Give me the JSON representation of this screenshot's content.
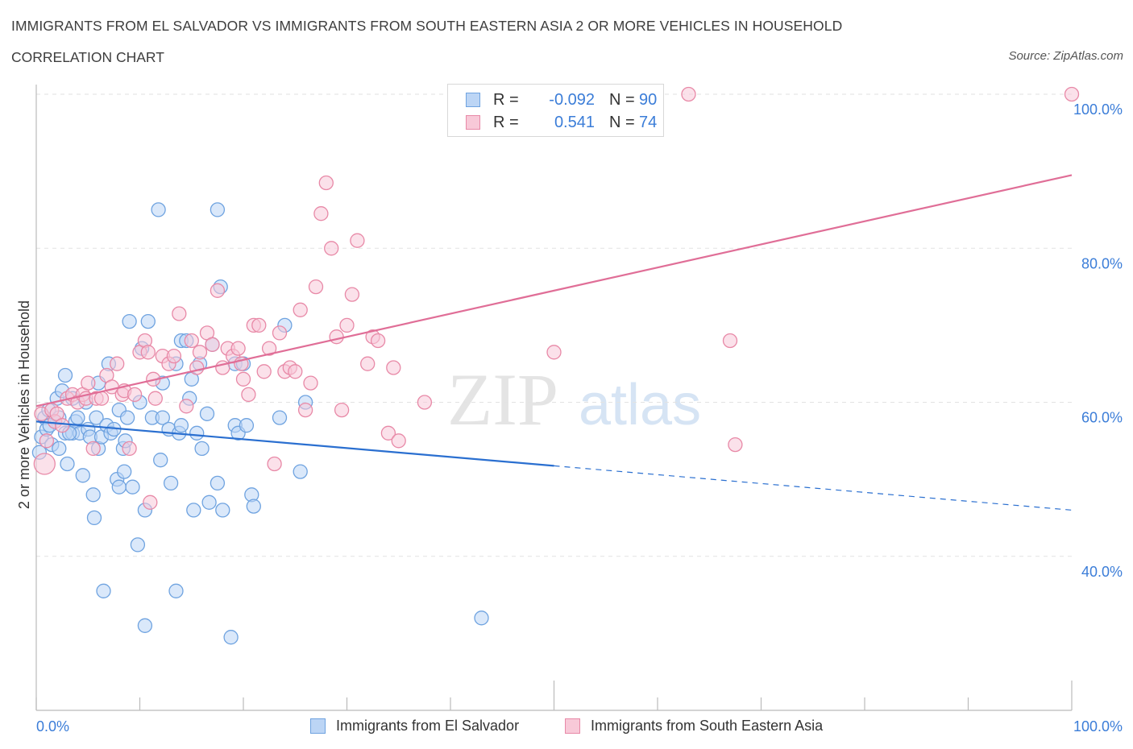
{
  "header": {
    "title": "IMMIGRANTS FROM EL SALVADOR VS IMMIGRANTS FROM SOUTH EASTERN ASIA 2 OR MORE VEHICLES IN HOUSEHOLD",
    "subtitle": "CORRELATION CHART",
    "source": "Source: ZipAtlas.com"
  },
  "watermark": {
    "zip": "ZIP",
    "atlas": "atlas"
  },
  "legend": {
    "rows": [
      {
        "r_label": "R =",
        "r_value": "-0.092",
        "n_label": "N =",
        "n_value": "90",
        "color": "#6fa3e0",
        "fill": "#bcd5f5"
      },
      {
        "r_label": "R =",
        "r_value": "0.541",
        "n_label": "N =",
        "n_value": "74",
        "color": "#e889a7",
        "fill": "#f8c9d8"
      }
    ]
  },
  "chart_data": {
    "type": "scatter",
    "title": "IMMIGRANTS FROM EL SALVADOR VS IMMIGRANTS FROM SOUTH EASTERN ASIA 2 OR MORE VEHICLES IN HOUSEHOLD",
    "subtitle": "CORRELATION CHART",
    "xlabel": "",
    "ylabel": "2 or more Vehicles in Household",
    "xlim": [
      0,
      100
    ],
    "ylim": [
      20,
      100
    ],
    "x_tick_labels": [
      "0.0%",
      "100.0%"
    ],
    "y_tick_values": [
      40,
      60,
      80,
      100
    ],
    "y_tick_labels": [
      "40.0%",
      "60.0%",
      "80.0%",
      "100.0%"
    ],
    "grid": true,
    "grid_style": "dashed horizontal",
    "legend_position": "top-center",
    "series": [
      {
        "name": "Immigrants from El Salvador",
        "color": "#6fa3e0",
        "fill": "#bcd5f5",
        "trend_color": "#2a6fd0",
        "R": -0.092,
        "N": 90,
        "trend": {
          "x0": 0,
          "y0": 57.5,
          "x_solid_end": 50,
          "x1": 100,
          "y1": 46
        },
        "points": [
          [
            0.5,
            55.5
          ],
          [
            0.8,
            58.0
          ],
          [
            1.0,
            56.5
          ],
          [
            1.2,
            59.0
          ],
          [
            1.5,
            54.5
          ],
          [
            1.8,
            57.5
          ],
          [
            2.0,
            60.5
          ],
          [
            2.2,
            58.0
          ],
          [
            2.5,
            61.5
          ],
          [
            2.8,
            63.5
          ],
          [
            2.8,
            56.0
          ],
          [
            3.0,
            52.0
          ],
          [
            3.5,
            60.5
          ],
          [
            3.5,
            56.0
          ],
          [
            3.8,
            57.5
          ],
          [
            4.0,
            58.0
          ],
          [
            4.2,
            56.0
          ],
          [
            4.5,
            50.5
          ],
          [
            4.8,
            60.0
          ],
          [
            5.0,
            56.5
          ],
          [
            5.2,
            55.5
          ],
          [
            5.5,
            48.0
          ],
          [
            5.6,
            45.0
          ],
          [
            5.8,
            58.0
          ],
          [
            6.0,
            54.0
          ],
          [
            6.0,
            62.5
          ],
          [
            6.3,
            55.5
          ],
          [
            6.5,
            35.5
          ],
          [
            6.8,
            57.0
          ],
          [
            7.0,
            65.0
          ],
          [
            7.2,
            56.0
          ],
          [
            7.5,
            56.5
          ],
          [
            7.8,
            50.0
          ],
          [
            8.0,
            49.0
          ],
          [
            8.0,
            59.0
          ],
          [
            8.4,
            54.0
          ],
          [
            8.5,
            51.0
          ],
          [
            8.6,
            55.0
          ],
          [
            8.8,
            58.0
          ],
          [
            9.0,
            70.5
          ],
          [
            9.3,
            49.0
          ],
          [
            9.8,
            41.5
          ],
          [
            10.0,
            60.0
          ],
          [
            10.2,
            67.0
          ],
          [
            10.5,
            46.0
          ],
          [
            10.5,
            31.0
          ],
          [
            10.8,
            70.5
          ],
          [
            11.2,
            58.0
          ],
          [
            11.8,
            85.0
          ],
          [
            12.0,
            52.5
          ],
          [
            12.2,
            62.5
          ],
          [
            12.2,
            58.0
          ],
          [
            12.8,
            56.5
          ],
          [
            13.0,
            49.5
          ],
          [
            13.5,
            65.0
          ],
          [
            13.5,
            35.5
          ],
          [
            13.8,
            56.0
          ],
          [
            14.0,
            68.0
          ],
          [
            14.5,
            68.0
          ],
          [
            14.8,
            60.5
          ],
          [
            15.0,
            63.0
          ],
          [
            15.2,
            46.0
          ],
          [
            15.5,
            56.0
          ],
          [
            15.8,
            65.0
          ],
          [
            16.0,
            54.0
          ],
          [
            16.5,
            58.5
          ],
          [
            16.7,
            47.0
          ],
          [
            17.0,
            67.5
          ],
          [
            17.5,
            49.5
          ],
          [
            17.5,
            85.0
          ],
          [
            17.8,
            75.0
          ],
          [
            18.0,
            46.0
          ],
          [
            18.8,
            29.5
          ],
          [
            19.2,
            65.0
          ],
          [
            19.2,
            57.0
          ],
          [
            19.5,
            56.0
          ],
          [
            20.0,
            65.0
          ],
          [
            20.3,
            57.0
          ],
          [
            20.8,
            48.0
          ],
          [
            21.0,
            46.5
          ],
          [
            23.5,
            58.0
          ],
          [
            24.0,
            70.0
          ],
          [
            25.5,
            51.0
          ],
          [
            26.0,
            60.0
          ],
          [
            43.0,
            32.0
          ],
          [
            0.3,
            53.5
          ],
          [
            1.3,
            57.0
          ],
          [
            3.2,
            56.0
          ],
          [
            2.2,
            54.0
          ],
          [
            14.0,
            57.0
          ]
        ]
      },
      {
        "name": "Immigrants from South Eastern Asia",
        "color": "#e889a7",
        "fill": "#f8c9d8",
        "trend_color": "#e06e97",
        "R": 0.541,
        "N": 74,
        "trend": {
          "x0": 0,
          "y0": 59.5,
          "x1": 100,
          "y1": 89.5
        },
        "points": [
          [
            0.5,
            58.5
          ],
          [
            0.8,
            52.0
          ],
          [
            1.0,
            55.0
          ],
          [
            1.5,
            59.0
          ],
          [
            1.8,
            57.5
          ],
          [
            2.0,
            58.5
          ],
          [
            2.5,
            57.0
          ],
          [
            3.0,
            60.5
          ],
          [
            3.5,
            61.0
          ],
          [
            4.0,
            60.0
          ],
          [
            4.5,
            61.0
          ],
          [
            4.8,
            60.5
          ],
          [
            5.0,
            62.5
          ],
          [
            5.5,
            54.0
          ],
          [
            5.8,
            60.5
          ],
          [
            6.3,
            60.5
          ],
          [
            6.8,
            63.5
          ],
          [
            7.3,
            62.0
          ],
          [
            7.8,
            65.0
          ],
          [
            8.3,
            61.0
          ],
          [
            8.5,
            61.5
          ],
          [
            9.0,
            54.0
          ],
          [
            9.5,
            61.0
          ],
          [
            10.0,
            66.5
          ],
          [
            10.5,
            68.0
          ],
          [
            10.8,
            66.5
          ],
          [
            11.0,
            47.0
          ],
          [
            11.3,
            63.0
          ],
          [
            11.5,
            60.5
          ],
          [
            12.2,
            66.0
          ],
          [
            12.8,
            65.0
          ],
          [
            13.3,
            66.0
          ],
          [
            13.8,
            71.5
          ],
          [
            14.5,
            59.5
          ],
          [
            15.0,
            68.0
          ],
          [
            15.5,
            64.5
          ],
          [
            15.8,
            66.5
          ],
          [
            16.5,
            69.0
          ],
          [
            17.0,
            67.5
          ],
          [
            17.5,
            74.5
          ],
          [
            18.0,
            64.5
          ],
          [
            18.5,
            67.0
          ],
          [
            19.0,
            66.0
          ],
          [
            19.5,
            67.0
          ],
          [
            19.8,
            65.0
          ],
          [
            20.0,
            63.0
          ],
          [
            20.5,
            61.0
          ],
          [
            21.0,
            70.0
          ],
          [
            21.5,
            70.0
          ],
          [
            22.0,
            64.0
          ],
          [
            22.5,
            67.0
          ],
          [
            23.0,
            52.0
          ],
          [
            23.5,
            69.0
          ],
          [
            24.0,
            64.0
          ],
          [
            24.5,
            64.5
          ],
          [
            25.0,
            64.0
          ],
          [
            25.5,
            72.0
          ],
          [
            26.0,
            59.0
          ],
          [
            26.5,
            62.5
          ],
          [
            27.0,
            75.0
          ],
          [
            27.5,
            84.5
          ],
          [
            28.0,
            88.5
          ],
          [
            28.5,
            80.0
          ],
          [
            29.0,
            68.5
          ],
          [
            29.5,
            59.0
          ],
          [
            30.0,
            70.0
          ],
          [
            30.5,
            74.0
          ],
          [
            31.0,
            81.0
          ],
          [
            32.0,
            65.0
          ],
          [
            32.5,
            68.5
          ],
          [
            33.0,
            68.0
          ],
          [
            34.0,
            56.0
          ],
          [
            34.5,
            64.5
          ],
          [
            35.0,
            55.0
          ]
        ],
        "extra_points": [
          [
            37.5,
            60.0
          ],
          [
            50.0,
            66.5
          ],
          [
            63.0,
            100.0
          ],
          [
            67.0,
            68.0
          ],
          [
            67.5,
            54.5
          ],
          [
            100.0,
            100.0
          ]
        ]
      }
    ]
  },
  "bottom_legend": {
    "items": [
      {
        "label": "Immigrants from El Salvador",
        "color": "#6fa3e0",
        "fill": "#bcd5f5"
      },
      {
        "label": "Immigrants from South Eastern Asia",
        "color": "#e889a7",
        "fill": "#f8c9d8"
      }
    ]
  }
}
